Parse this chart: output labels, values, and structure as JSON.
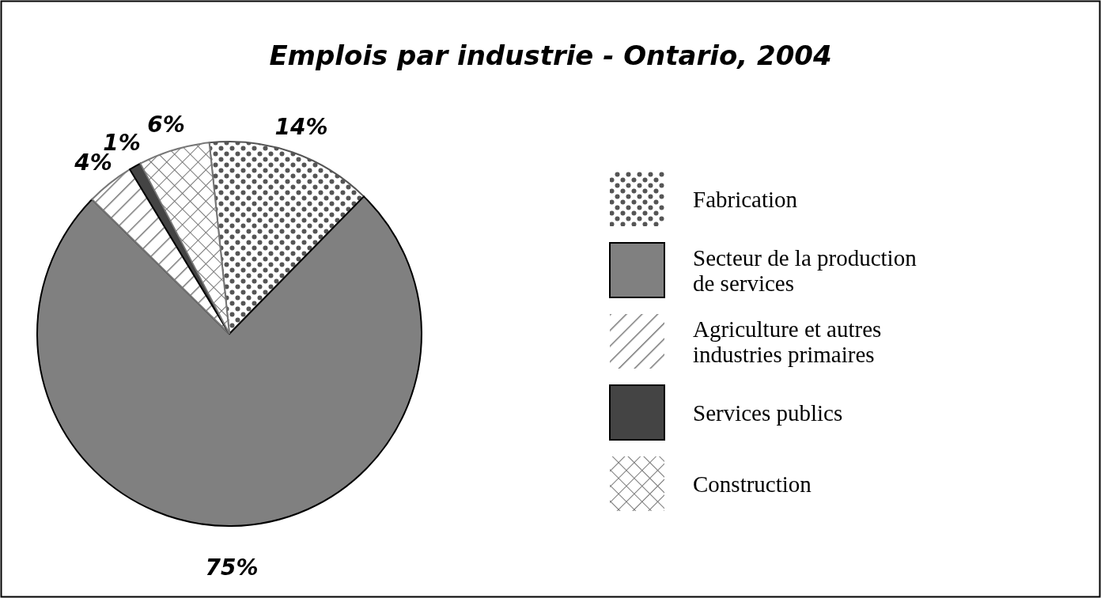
{
  "chart_data": {
    "type": "pie",
    "title": "Emplois par industrie - Ontario, 2004",
    "categories": [
      "Fabrication",
      "Secteur de la production de services",
      "Agriculture et autres industries primaires",
      "Services publics",
      "Construction"
    ],
    "values": [
      14,
      75,
      4,
      1,
      6
    ],
    "value_labels": [
      "14%",
      "75%",
      "4%",
      "1%",
      "6%"
    ],
    "colors": [
      "#555555",
      "#808080",
      "#777777",
      "#444444",
      "#777777"
    ],
    "legend": "right"
  }
}
